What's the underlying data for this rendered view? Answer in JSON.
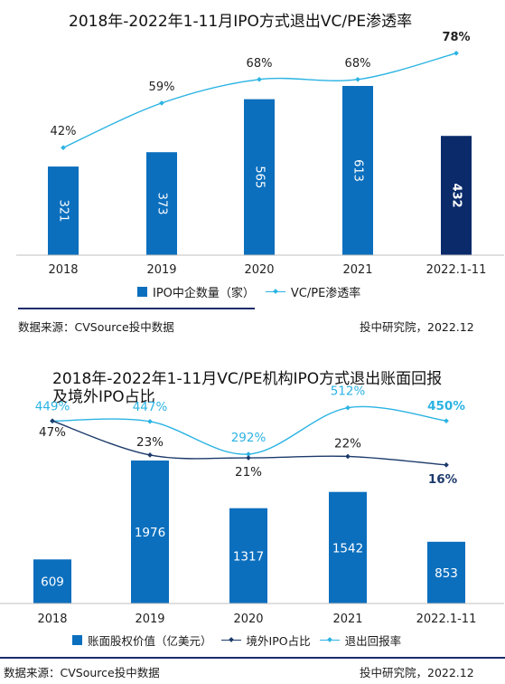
{
  "charts": {
    "chart1": {
      "title": "2018年-2022年1-11月IPO方式退出VC/PE渗透率",
      "legend_bar": "IPO中企数量（家）",
      "legend_line": "VC/PE渗透率",
      "source": "数据来源：CVSource投中数据",
      "credit": "投中研究院，2022.12"
    },
    "chart2": {
      "title_line1": "2018年-2022年1-11月VC/PE机构IPO方式退出账面回报",
      "title_line2": "及境外IPO占比",
      "legend_bar": "账面股权价值（亿美元）",
      "legend_line1": "境外IPO占比",
      "legend_line2": "退出回报率",
      "source": "数据来源：CVSource投中数据",
      "credit": "投中研究院，2022.12"
    }
  },
  "colors": {
    "bar": "#0b6fbe",
    "bar_highlight": "#0a2a6a",
    "line_light": "#2bb3e3",
    "line_dark": "#1c3a6b",
    "label_light": "#2bb3e3",
    "label_dark": "#1c3a6b",
    "rule": "#1c2b6b"
  },
  "chart_data": [
    {
      "type": "bar",
      "title": "2018年-2022年1-11月IPO方式退出VC/PE渗透率",
      "categories": [
        "2018",
        "2019",
        "2020",
        "2021",
        "2022.1-11"
      ],
      "series": [
        {
          "name": "IPO中企数量（家）",
          "type": "bar",
          "values": [
            321,
            373,
            565,
            613,
            432
          ],
          "labels": [
            "321",
            "373",
            "565",
            "613",
            "432"
          ]
        },
        {
          "name": "VC/PE渗透率",
          "type": "line",
          "values": [
            42,
            59,
            68,
            68,
            78
          ],
          "labels": [
            "42%",
            "59%",
            "68%",
            "68%",
            "78%"
          ]
        }
      ],
      "ylim": [
        0,
        700
      ],
      "line_ylim": [
        0,
        100
      ],
      "grid": false,
      "legend": "bottom"
    },
    {
      "type": "bar",
      "title": "2018年-2022年1-11月VC/PE机构IPO方式退出账面回报及境外IPO占比",
      "categories": [
        "2018",
        "2019",
        "2020",
        "2021",
        "2022.1-11"
      ],
      "series": [
        {
          "name": "账面股权价值（亿美元）",
          "type": "bar",
          "values": [
            609,
            1976,
            1317,
            1542,
            853
          ],
          "labels": [
            "609",
            "1976",
            "1317",
            "1542",
            "853"
          ]
        },
        {
          "name": "境外IPO占比",
          "type": "line",
          "values": [
            47,
            23,
            21,
            22,
            16
          ],
          "labels": [
            "47%",
            "23%",
            "21%",
            "22%",
            "16%"
          ]
        },
        {
          "name": "退出回报率",
          "type": "line",
          "values": [
            449,
            447,
            292,
            512,
            450
          ],
          "labels": [
            "449%",
            "447%",
            "292%",
            "512%",
            "450%"
          ]
        }
      ],
      "ylim": [
        0,
        2300
      ],
      "grid": false,
      "legend": "bottom"
    }
  ]
}
